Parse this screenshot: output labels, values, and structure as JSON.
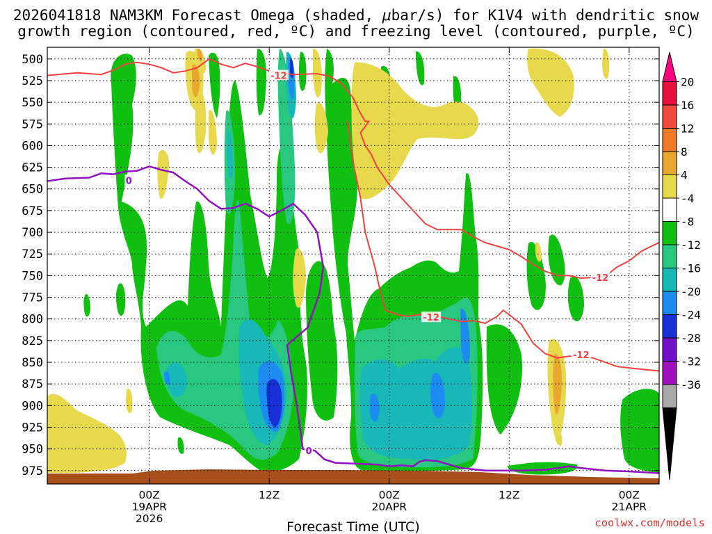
{
  "chart_data": {
    "type": "time-height contour",
    "title": "2026041818 NAM3KM Forecast Omega (shaded, μbar/s) for K1V4 with dendritic snow",
    "title_line1_prefix": "2026041818 NAM3KM Forecast Omega (shaded, ",
    "title_mu": "μ",
    "title_line1_suffix": "bar/s) for K1V4 with dendritic snow",
    "title_line2": "growth region (contoured, red, ºC) and freezing level (contoured, purple, ºC)",
    "xlabel": "Forecast Time (UTC)",
    "credit": "coolwx.com/models",
    "y_ticks": [
      500,
      525,
      550,
      575,
      600,
      625,
      650,
      675,
      700,
      725,
      750,
      775,
      800,
      825,
      850,
      875,
      900,
      925,
      950,
      975
    ],
    "y_tick_labels": [
      "500",
      "525",
      "550",
      "575",
      "600",
      "625",
      "650",
      "675",
      "700",
      "725",
      "750",
      "775",
      "800",
      "825",
      "850",
      "875",
      "900",
      "925",
      "950",
      "975"
    ],
    "x_range_hours": [
      -8.5,
      42.5
    ],
    "x_ticks": [
      {
        "hour": 0,
        "lines": [
          "00Z",
          "19APR",
          "2026"
        ]
      },
      {
        "hour": 10,
        "lines": [
          "12Z"
        ]
      },
      {
        "hour": 20,
        "lines": [
          "00Z",
          "20APR"
        ]
      },
      {
        "hour": 30,
        "lines": [
          "12Z"
        ]
      },
      {
        "hour": 40,
        "lines": [
          "00Z",
          "21APR"
        ]
      }
    ],
    "colorbar": {
      "levels": [
        -36,
        -32,
        -28,
        -24,
        -20,
        -16,
        -12,
        -8,
        -4,
        4,
        8,
        12,
        16,
        20
      ],
      "labels": [
        "20",
        "16",
        "12",
        "8",
        "4",
        "-4",
        "-8",
        "-12",
        "-16",
        "-20",
        "-24",
        "-28",
        "-32",
        "-36"
      ],
      "colors_top_to_bottom": [
        "#e8103c",
        "#f04a3c",
        "#f07a28",
        "#e8a830",
        "#e8d84c",
        "#ffffff",
        "#10c010",
        "#28c880",
        "#18b8b8",
        "#1c8cf0",
        "#1830d8",
        "#7010c8",
        "#a010c0",
        "#a8a8a8"
      ],
      "over_color": "#ff0080",
      "under_color": "#000000"
    },
    "colors": {
      "green": "#10c010",
      "teal": "#28c880",
      "cyan": "#18b8b8",
      "blue": "#1c8cf0",
      "dark_blue": "#1830d8",
      "yellow": "#e8d84c",
      "orange": "#e8a830",
      "red_contour": "#f04040",
      "purple_contour": "#9010c0",
      "terrain": "#a8501c"
    },
    "contour_labels": [
      {
        "text": "-12",
        "hour": 10.8,
        "p": 519,
        "color": "#f04040"
      },
      {
        "text": "-12",
        "hour": 23.5,
        "p": 798,
        "color": "#f04040"
      },
      {
        "text": "-12",
        "hour": 37.6,
        "p": 752,
        "color": "#f04040"
      },
      {
        "text": "-12",
        "hour": 36.0,
        "p": 841,
        "color": "#f04040"
      },
      {
        "text": "0",
        "hour": -1.7,
        "p": 640,
        "color": "#9010c0"
      },
      {
        "text": "0",
        "hour": 13.3,
        "p": 952,
        "color": "#9010c0"
      }
    ],
    "red_contour_main": [
      [
        -8.5,
        519
      ],
      [
        -6,
        516
      ],
      [
        -4,
        518
      ],
      [
        -3,
        513
      ],
      [
        -2,
        506
      ],
      [
        -1,
        504
      ],
      [
        0,
        506
      ],
      [
        1,
        510
      ],
      [
        2,
        516
      ],
      [
        3,
        514
      ],
      [
        4,
        510
      ],
      [
        5,
        500
      ],
      [
        6,
        506
      ],
      [
        7,
        510
      ],
      [
        8,
        505
      ],
      [
        9,
        509
      ],
      [
        10,
        514
      ],
      [
        12,
        518
      ],
      [
        14,
        517
      ],
      [
        15,
        520
      ],
      [
        16,
        528
      ],
      [
        17,
        545
      ],
      [
        17.5,
        560
      ],
      [
        18,
        572
      ],
      [
        18.3,
        572
      ],
      [
        18,
        578
      ],
      [
        17.6,
        585
      ],
      [
        18,
        600
      ],
      [
        18.5,
        610
      ],
      [
        19,
        625
      ],
      [
        20,
        645
      ],
      [
        21,
        660
      ],
      [
        22,
        675
      ],
      [
        23,
        690
      ],
      [
        24,
        697
      ],
      [
        25,
        697
      ],
      [
        26,
        697
      ],
      [
        27,
        705
      ],
      [
        28,
        712
      ],
      [
        29,
        716
      ],
      [
        30,
        720
      ],
      [
        31,
        728
      ],
      [
        32,
        737
      ],
      [
        33,
        745
      ],
      [
        34,
        750
      ],
      [
        35,
        750
      ],
      [
        36,
        753
      ],
      [
        37,
        752
      ],
      [
        38,
        751
      ],
      [
        39,
        740
      ],
      [
        40,
        733
      ],
      [
        41,
        722
      ],
      [
        42,
        715
      ],
      [
        42.5,
        712
      ]
    ],
    "red_contour_low": [
      [
        16.5,
        572
      ],
      [
        17,
        620
      ],
      [
        17.6,
        660
      ],
      [
        18,
        700
      ],
      [
        18.8,
        740
      ],
      [
        19.2,
        765
      ],
      [
        19.7,
        790
      ],
      [
        20.7,
        795
      ],
      [
        21.5,
        797
      ],
      [
        22.5,
        795
      ],
      [
        24,
        797
      ],
      [
        25,
        800
      ],
      [
        26,
        803
      ],
      [
        27,
        802
      ],
      [
        28,
        805
      ],
      [
        29,
        797
      ],
      [
        29.5,
        790
      ],
      [
        30,
        795
      ],
      [
        31,
        806
      ],
      [
        32,
        828
      ],
      [
        33,
        840
      ],
      [
        34,
        845
      ],
      [
        35,
        843
      ],
      [
        37,
        845
      ],
      [
        39,
        855
      ],
      [
        41,
        858
      ],
      [
        42.5,
        860
      ]
    ],
    "purple_contour": [
      [
        -8.5,
        641
      ],
      [
        -7,
        638
      ],
      [
        -5,
        637
      ],
      [
        -4,
        632
      ],
      [
        -3,
        633
      ],
      [
        -2,
        630
      ],
      [
        -1,
        629
      ],
      [
        0,
        624
      ],
      [
        1,
        628
      ],
      [
        2,
        631
      ],
      [
        3,
        641
      ],
      [
        4,
        650
      ],
      [
        5,
        664
      ],
      [
        6,
        673
      ],
      [
        7,
        672
      ],
      [
        8,
        667
      ],
      [
        9,
        673
      ],
      [
        10,
        682
      ],
      [
        11,
        675
      ],
      [
        12,
        667
      ],
      [
        13,
        680
      ],
      [
        14,
        700
      ],
      [
        14.5,
        740
      ],
      [
        14.2,
        770
      ],
      [
        13.2,
        810
      ],
      [
        11.5,
        830
      ],
      [
        11.8,
        860
      ],
      [
        12.3,
        900
      ],
      [
        12.6,
        930
      ],
      [
        12.8,
        950
      ],
      [
        13.8,
        952
      ],
      [
        14.6,
        962
      ],
      [
        15.5,
        966
      ],
      [
        17,
        967
      ],
      [
        19,
        968
      ],
      [
        20,
        970
      ],
      [
        21,
        969
      ],
      [
        22,
        970
      ],
      [
        22.5,
        965
      ],
      [
        23,
        963
      ],
      [
        24,
        964
      ],
      [
        25,
        968
      ],
      [
        26,
        972
      ],
      [
        28,
        975
      ],
      [
        30,
        975
      ],
      [
        31,
        975
      ],
      [
        33,
        974
      ],
      [
        35,
        970
      ],
      [
        36,
        972
      ],
      [
        38,
        975
      ],
      [
        40,
        976
      ],
      [
        42.5,
        978
      ]
    ]
  }
}
